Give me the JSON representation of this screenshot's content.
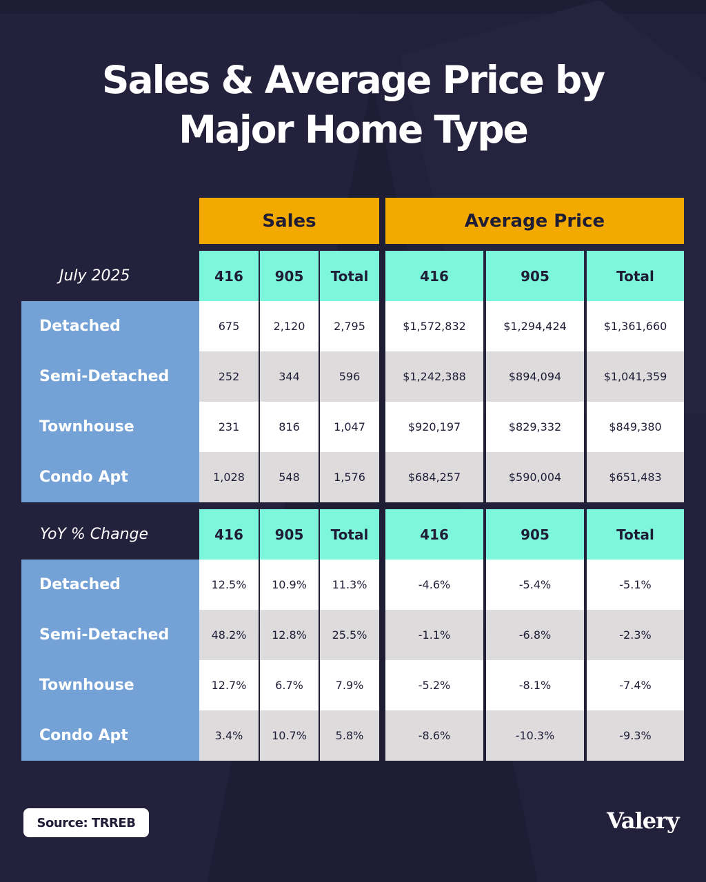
{
  "header": {
    "title_line1": "Sales & Average Price by",
    "title_line2": "Major Home Type"
  },
  "chart_data": {
    "type": "table",
    "title": "Sales & Average Price by Major Home Type",
    "column_groups": [
      "Sales",
      "Average Price"
    ],
    "columns": [
      "416",
      "905",
      "Total"
    ],
    "sections": [
      {
        "period": "July 2025",
        "rows": [
          {
            "label": "Detached",
            "sales": [
              "675",
              "2,120",
              "2,795"
            ],
            "price": [
              "$1,572,832",
              "$1,294,424",
              "$1,361,660"
            ]
          },
          {
            "label": "Semi-Detached",
            "sales": [
              "252",
              "344",
              "596"
            ],
            "price": [
              "$1,242,388",
              "$894,094",
              "$1,041,359"
            ]
          },
          {
            "label": "Townhouse",
            "sales": [
              "231",
              "816",
              "1,047"
            ],
            "price": [
              "$920,197",
              "$829,332",
              "$849,380"
            ]
          },
          {
            "label": "Condo Apt",
            "sales": [
              "1,028",
              "548",
              "1,576"
            ],
            "price": [
              "$684,257",
              "$590,004",
              "$651,483"
            ]
          }
        ]
      },
      {
        "period": "YoY % Change",
        "rows": [
          {
            "label": "Detached",
            "sales": [
              "12.5%",
              "10.9%",
              "11.3%"
            ],
            "price": [
              "-4.6%",
              "-5.4%",
              "-5.1%"
            ]
          },
          {
            "label": "Semi-Detached",
            "sales": [
              "48.2%",
              "12.8%",
              "25.5%"
            ],
            "price": [
              "-1.1%",
              "-6.8%",
              "-2.3%"
            ]
          },
          {
            "label": "Townhouse",
            "sales": [
              "12.7%",
              "6.7%",
              "7.9%"
            ],
            "price": [
              "-5.2%",
              "-8.1%",
              "-7.4%"
            ]
          },
          {
            "label": "Condo Apt",
            "sales": [
              "3.4%",
              "10.7%",
              "5.8%"
            ],
            "price": [
              "-8.6%",
              "-10.3%",
              "-9.3%"
            ]
          }
        ]
      }
    ]
  },
  "footer": {
    "source": "Source: TRREB",
    "logo": "Valery"
  },
  "colors": {
    "background": "#1f1c36",
    "group_header": "#f2a900",
    "column_header": "#7cf7dc",
    "row_label": "#74a2d6",
    "row_gray": "#dedbdd",
    "row_white": "#ffffff"
  }
}
